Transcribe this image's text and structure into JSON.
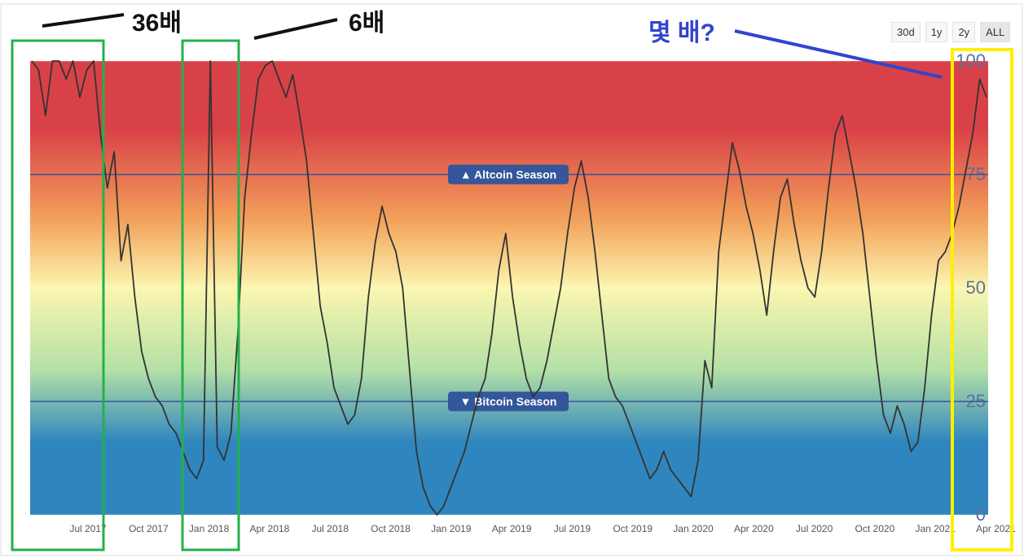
{
  "toolbar": {
    "buttons": [
      {
        "label": "30d",
        "active": false
      },
      {
        "label": "1y",
        "active": false
      },
      {
        "label": "2y",
        "active": false
      },
      {
        "label": "ALL",
        "active": true
      }
    ]
  },
  "annotations": {
    "left_multiplier": "36배",
    "middle_multiplier": "6배",
    "question": "몇 배?",
    "green_box_color": "#22b14c",
    "yellow_box_color": "#ffef00",
    "question_color": "#3344cc"
  },
  "chart_data": {
    "type": "line",
    "title": "",
    "xlabel": "",
    "ylabel": "",
    "ylim": [
      0,
      100
    ],
    "y_ticks": [
      "0",
      "25",
      "50",
      "75",
      "100"
    ],
    "x_ticks": [
      "Jul 2017",
      "Oct 2017",
      "Jan 2018",
      "Apr 2018",
      "Jul 2018",
      "Oct 2018",
      "Jan 2019",
      "Apr 2019",
      "Jul 2019",
      "Oct 2019",
      "Jan 2020",
      "Apr 2020",
      "Jul 2020",
      "Oct 2020",
      "Jan 2021",
      "Apr 2021"
    ],
    "thresholds": [
      {
        "label": "▲ Altcoin Season",
        "value": 75
      },
      {
        "label": "▼ Bitcoin Season",
        "value": 25
      }
    ],
    "background_gradient": [
      "#d94148",
      "#f08a4b",
      "#fbf6b0",
      "#9fd6a4",
      "#2f86be"
    ],
    "line_color": "#333333",
    "series": [
      {
        "values": [
          100,
          98,
          88,
          100,
          100,
          96,
          100,
          92,
          98,
          100,
          84,
          72,
          80,
          56,
          64,
          48,
          36,
          30,
          26,
          24,
          20,
          18,
          14,
          10,
          8,
          12,
          100,
          15,
          12,
          18,
          40,
          70,
          84,
          96,
          99,
          100,
          96,
          92,
          97,
          88,
          78,
          62,
          46,
          38,
          28,
          24,
          20,
          22,
          30,
          48,
          60,
          68,
          62,
          58,
          50,
          32,
          14,
          6,
          2,
          0,
          2,
          6,
          10,
          14,
          20,
          26,
          30,
          40,
          54,
          62,
          48,
          38,
          30,
          26,
          28,
          34,
          42,
          50,
          62,
          72,
          78,
          70,
          58,
          44,
          30,
          26,
          24,
          20,
          16,
          12,
          8,
          10,
          14,
          10,
          8,
          6,
          4,
          12,
          34,
          28,
          58,
          70,
          82,
          76,
          68,
          62,
          54,
          44,
          58,
          70,
          74,
          64,
          56,
          50,
          48,
          58,
          72,
          84,
          88,
          80,
          72,
          62,
          48,
          34,
          22,
          18,
          24,
          20,
          14,
          16,
          28,
          44,
          56,
          58,
          62,
          68,
          76,
          84,
          96,
          92
        ]
      }
    ]
  }
}
